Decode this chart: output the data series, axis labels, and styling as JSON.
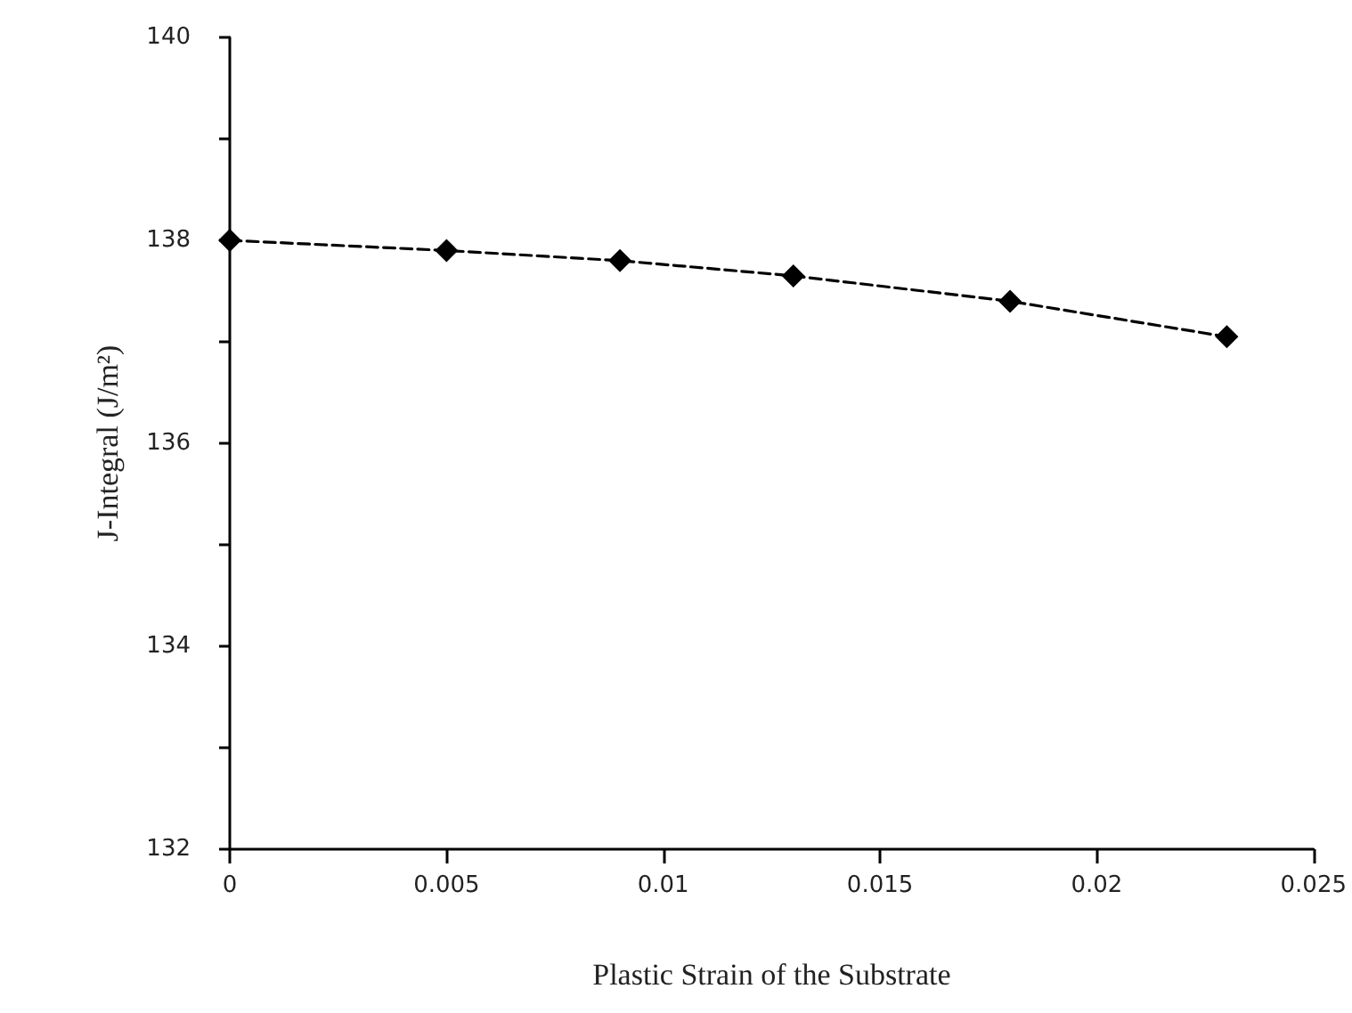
{
  "chart_data": {
    "type": "line",
    "xlabel": "Plastic Strain of the Substrate",
    "ylabel": "J-Integral (J/m²)",
    "x": [
      0,
      0.005,
      0.009,
      0.013,
      0.018,
      0.023
    ],
    "series": [
      {
        "color": "#000000",
        "values": [
          138,
          137.9,
          137.8,
          137.65,
          137.4,
          137.05
        ]
      }
    ],
    "xlim": [
      0,
      0.025
    ],
    "xticks": [
      0,
      0.005,
      0.01,
      0.015,
      0.02,
      0.025
    ],
    "ylim": [
      132,
      140
    ],
    "yticks": [
      132,
      {
        "value": 133,
        "label": null
      },
      134,
      {
        "value": 135,
        "label": null
      },
      136,
      {
        "value": 137,
        "label": null
      },
      138,
      {
        "value": 139,
        "label": null
      },
      140
    ],
    "grid": false,
    "marker": "diamond",
    "line_style": "dashed"
  }
}
